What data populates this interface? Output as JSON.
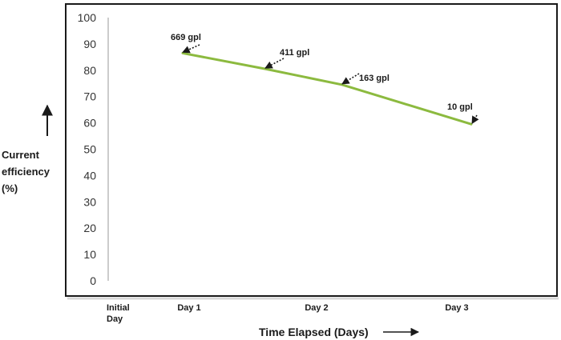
{
  "chart_data": {
    "type": "line",
    "categories": [
      "Initial Day",
      "Day 1",
      "Day 2",
      "Day 3"
    ],
    "x": [
      "Day 1",
      "Day 2",
      "Day 3"
    ],
    "series": [
      {
        "values": [
          86.5,
          80.5,
          74.5,
          59.5
        ]
      }
    ],
    "line_color": "#8cba3f",
    "ylim": [
      0,
      100
    ],
    "yticks": [
      "0",
      "10",
      "20",
      "30",
      "40",
      "50",
      "60",
      "70",
      "80",
      "90",
      "100"
    ],
    "xlabel": "Time Elapsed (Days)",
    "ylabel": [
      "Current",
      "efficiency",
      "(%)"
    ],
    "annotations": [
      {
        "text": "669 gpl",
        "x": "Day 1",
        "y": 86.5
      },
      {
        "text": "411 gpl",
        "x": "Day 1.6",
        "y": 80.5
      },
      {
        "text": "163 gpl",
        "x": "Day 2.2",
        "y": 74.5
      },
      {
        "text": "10 gpl",
        "x": "Day 3",
        "y": 59.5
      }
    ]
  }
}
